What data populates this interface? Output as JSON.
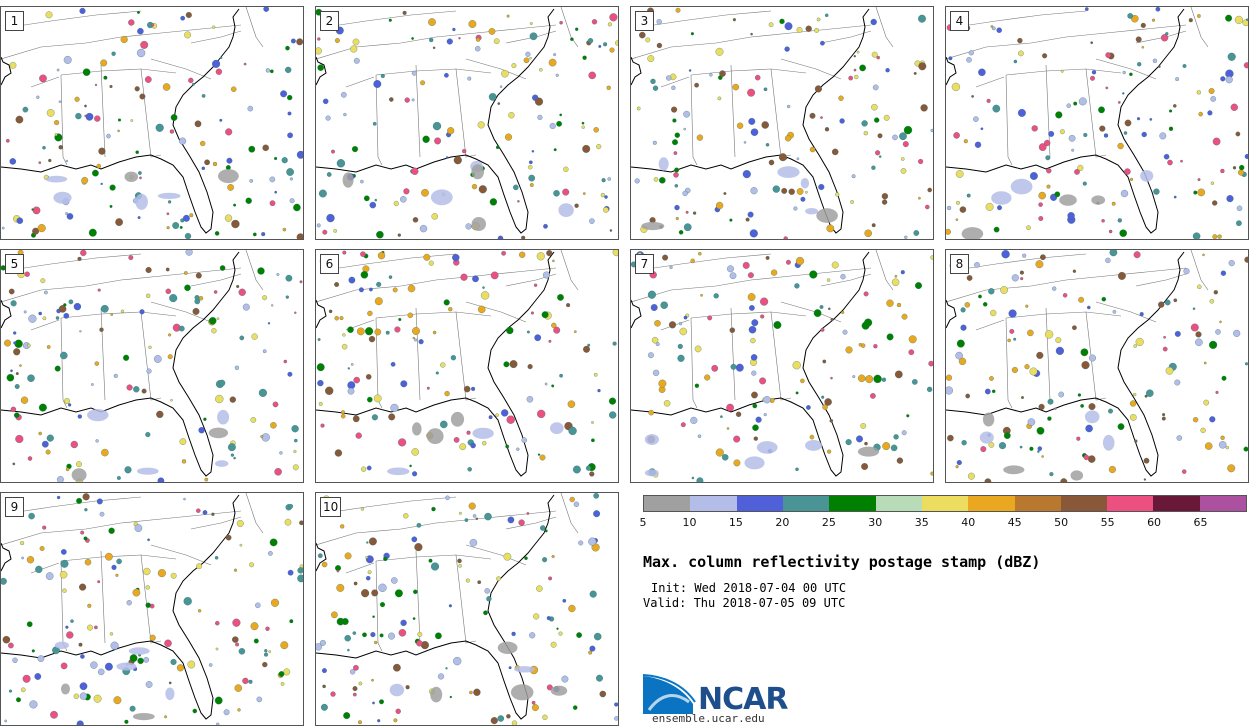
{
  "panels": [
    {
      "label": "1"
    },
    {
      "label": "2"
    },
    {
      "label": "3"
    },
    {
      "label": "4"
    },
    {
      "label": "5"
    },
    {
      "label": "6"
    },
    {
      "label": "7"
    },
    {
      "label": "8"
    },
    {
      "label": "9"
    },
    {
      "label": "10"
    }
  ],
  "colorbar": {
    "colors": [
      "#a0a0a0",
      "#b4bde8",
      "#5060d8",
      "#4a9496",
      "#008000",
      "#b8dcb8",
      "#ecdc60",
      "#eaa820",
      "#b87830",
      "#885838",
      "#ec5080",
      "#6a1838",
      "#ac50a0"
    ],
    "ticks": [
      "5",
      "10",
      "15",
      "20",
      "25",
      "30",
      "35",
      "40",
      "45",
      "50",
      "55",
      "60",
      "65"
    ]
  },
  "title": "Max. column reflectivity postage stamp (dBZ)",
  "init": "Init: Wed 2018-07-04 00 UTC",
  "valid": "Valid: Thu 2018-07-05 09 UTC",
  "logo": {
    "text": "NCAR",
    "site": "ensemble.ucar.edu",
    "brand_color": "#1f4e8c",
    "swoosh_color": "#0a74c2"
  }
}
